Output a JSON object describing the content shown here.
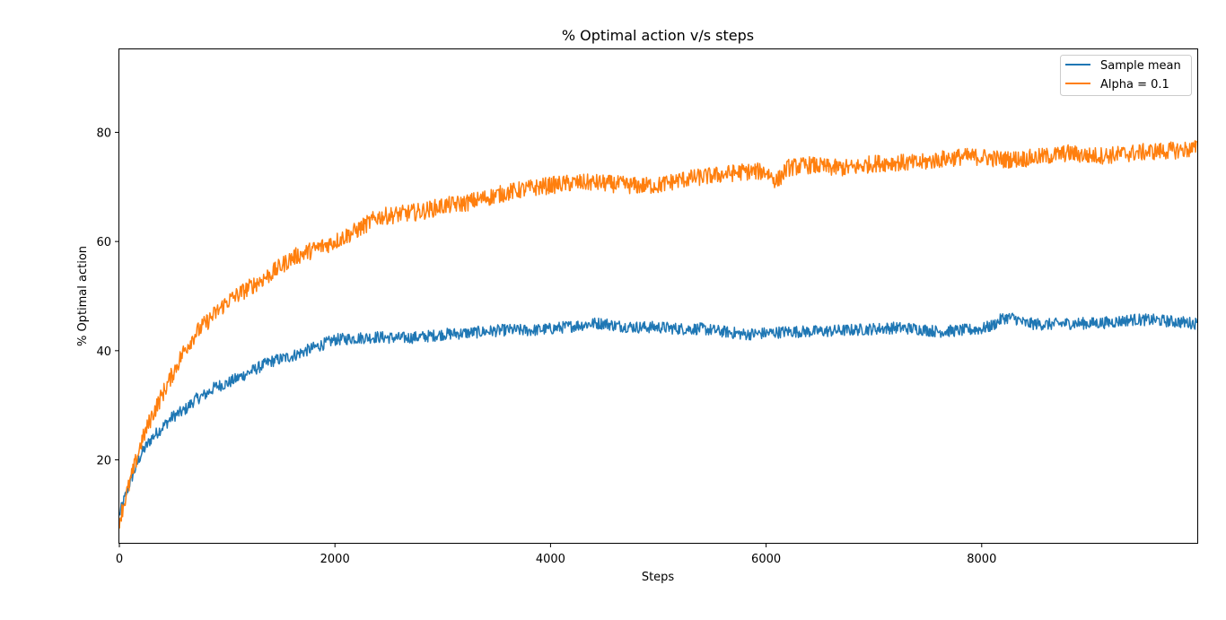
{
  "chart_data": {
    "type": "line",
    "title": "% Optimal action v/s steps",
    "xlabel": "Steps",
    "ylabel": "% Optimal action",
    "xlim": [
      0,
      10000
    ],
    "ylim": [
      4.8,
      95.2
    ],
    "xticks": [
      0,
      2000,
      4000,
      6000,
      8000
    ],
    "yticks": [
      20,
      40,
      60,
      80
    ],
    "grid": false,
    "legend_position": "upper right",
    "series": [
      {
        "name": "Sample mean",
        "color": "#1f77b4",
        "x": [
          0,
          100,
          200,
          300,
          400,
          500,
          600,
          700,
          800,
          900,
          1000,
          1200,
          1400,
          1600,
          1800,
          2000,
          2200,
          2400,
          2600,
          2800,
          3000,
          3200,
          3400,
          3600,
          3800,
          4000,
          4200,
          4400,
          4500,
          4600,
          4800,
          5000,
          5200,
          5400,
          5600,
          5800,
          6000,
          6200,
          6400,
          6600,
          6800,
          7000,
          7200,
          7400,
          7600,
          7800,
          8000,
          8100,
          8200,
          8300,
          8400,
          8600,
          8800,
          9000,
          9200,
          9400,
          9600,
          9800,
          10000
        ],
        "y": [
          10,
          16,
          21,
          24,
          26,
          28,
          29,
          31,
          32,
          33.5,
          34,
          36,
          38,
          39,
          40.5,
          42,
          42.3,
          42.5,
          42.3,
          42.5,
          43,
          43.2,
          43.5,
          43.8,
          43.7,
          44,
          44.5,
          45,
          45,
          44.6,
          44.3,
          44.3,
          44,
          44,
          43.5,
          43,
          43.2,
          43.5,
          43.5,
          43.6,
          43.8,
          44,
          44.2,
          44,
          43.5,
          43.7,
          44,
          44.6,
          46,
          46,
          45,
          44.8,
          45,
          45,
          45.2,
          45.7,
          45.6,
          45.3,
          45
        ]
      },
      {
        "name": "Alpha = 0.1",
        "color": "#ff7f0e",
        "x": [
          0,
          100,
          200,
          300,
          400,
          500,
          600,
          700,
          800,
          900,
          1000,
          1200,
          1400,
          1600,
          1800,
          2000,
          2200,
          2400,
          2600,
          2800,
          3000,
          3200,
          3400,
          3600,
          3800,
          4000,
          4200,
          4400,
          4600,
          4800,
          5000,
          5200,
          5400,
          5600,
          5800,
          6000,
          6100,
          6200,
          6400,
          6600,
          6800,
          7000,
          7200,
          7400,
          7600,
          7800,
          8000,
          8200,
          8400,
          8600,
          8800,
          9000,
          9200,
          9400,
          9600,
          9800,
          10000
        ],
        "y": [
          9,
          16,
          23,
          28,
          32,
          36,
          40,
          43,
          45,
          47,
          49,
          51.5,
          54,
          57,
          58.5,
          60,
          62,
          64.5,
          65,
          65.5,
          66.5,
          67,
          68,
          69,
          69.7,
          70.3,
          70.7,
          70.8,
          70.5,
          70.2,
          70.3,
          71.3,
          71.8,
          72.3,
          72.8,
          72.8,
          71,
          73.5,
          74,
          73.5,
          73.5,
          74.3,
          74.5,
          74.3,
          75,
          75.5,
          75.5,
          75,
          75.2,
          75.6,
          76.2,
          75.7,
          75.8,
          76.2,
          76.5,
          76.7,
          77
        ]
      }
    ]
  }
}
